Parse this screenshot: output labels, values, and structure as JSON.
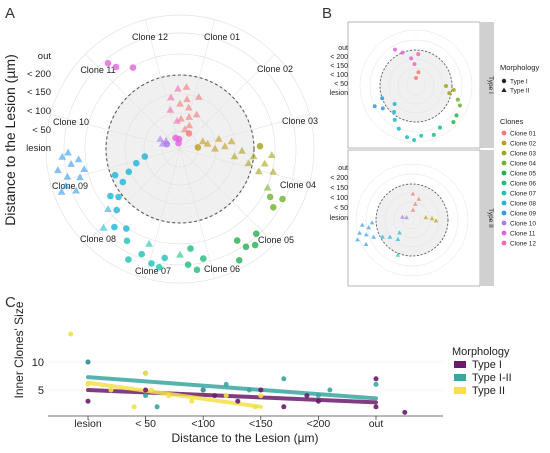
{
  "panel_labels": {
    "a": "A",
    "b": "B",
    "c": "C"
  },
  "colors": {
    "clones": [
      "#f07a78",
      "#c49a18",
      "#a3a317",
      "#6fb22d",
      "#22b14c",
      "#1dbd7a",
      "#19c2b6",
      "#1db5d6",
      "#2f9be8",
      "#a97bee",
      "#e064d8",
      "#f06aae"
    ],
    "morph": {
      "type1": "#6a1b6a",
      "type12": "#3aa6a0",
      "type2": "#f5e04a"
    },
    "panel_bg": "#f0f0f0",
    "grid": "#e3e3e3",
    "dashed": "#5a5a5a",
    "strip": "#d0d0d0"
  },
  "panel_a": {
    "ylabel": "Distance to the Lesion (µm)",
    "radial_labels": [
      "out",
      "< 200",
      "< 150",
      "< 100",
      "< 50",
      "lesion"
    ],
    "clone_labels": [
      "Clone 01",
      "Clone 02",
      "Clone 03",
      "Clone 04",
      "Clone 05",
      "Clone 06",
      "Clone 07",
      "Clone 08",
      "Clone 09",
      "Clone 10",
      "Clone 11",
      "Clone 12"
    ]
  },
  "panel_b": {
    "radial_labels": [
      "out",
      "< 200",
      "< 150",
      "< 100",
      "< 50",
      "lesion"
    ],
    "strip_labels": [
      "Type I",
      "Type II"
    ]
  },
  "legend_b": {
    "morph_title": "Morphology",
    "morph_items": [
      "Type I",
      "Type II"
    ],
    "clones_title": "Clones",
    "clone_items": [
      "Clone 01",
      "Clone 02",
      "Clone 03",
      "Clone 04",
      "Clone 05",
      "Clone 06",
      "Clone 07",
      "Clone 08",
      "Clone 09",
      "Clone 10",
      "Clone 11",
      "Clone 12"
    ]
  },
  "chart_data": {
    "type": "scatter",
    "xlabel": "Distance to the Lesion (µm)",
    "ylabel": "Inner Clones' Size",
    "categories": [
      "lesion",
      "< 50",
      "<100",
      "<150",
      "<200",
      "out"
    ],
    "yticks": [
      "5",
      "10"
    ],
    "ylim": [
      0,
      15
    ],
    "legend_title": "Morphology",
    "legend_position": "right",
    "series": [
      {
        "name": "Type I",
        "color": "#6a1b6a",
        "points": [
          [
            0.0,
            10
          ],
          [
            0.0,
            3
          ],
          [
            1.0,
            5
          ],
          [
            2.0,
            5
          ],
          [
            2.2,
            4
          ],
          [
            2.6,
            3
          ],
          [
            3.0,
            5
          ],
          [
            3.4,
            2
          ],
          [
            3.8,
            4
          ],
          [
            4.0,
            3
          ],
          [
            5.0,
            7
          ],
          [
            5.0,
            2
          ],
          [
            5.5,
            1
          ]
        ],
        "trend": [
          [
            0.0,
            5.0
          ],
          [
            5.0,
            2.8
          ]
        ]
      },
      {
        "name": "Type I-II",
        "color": "#3aa6a0",
        "points": [
          [
            0.0,
            10
          ],
          [
            1.0,
            8
          ],
          [
            1.0,
            4
          ],
          [
            1.2,
            2
          ],
          [
            2.0,
            5
          ],
          [
            2.4,
            6
          ],
          [
            2.8,
            5
          ],
          [
            3.4,
            7
          ],
          [
            4.0,
            4
          ],
          [
            4.2,
            5
          ],
          [
            5.0,
            6
          ]
        ],
        "trend": [
          [
            0.0,
            7.3
          ],
          [
            5.0,
            3.5
          ]
        ]
      },
      {
        "name": "Type II",
        "color": "#f5e04a",
        "points": [
          [
            -0.3,
            15
          ],
          [
            0.0,
            6
          ],
          [
            0.4,
            5
          ],
          [
            0.8,
            2
          ],
          [
            1.0,
            8
          ],
          [
            1.1,
            5
          ],
          [
            1.4,
            4
          ],
          [
            1.8,
            3
          ],
          [
            2.4,
            4
          ],
          [
            2.9,
            2
          ],
          [
            3.0,
            4
          ]
        ],
        "trend": [
          [
            0.0,
            6.3
          ],
          [
            3.0,
            2.0
          ]
        ]
      }
    ]
  }
}
